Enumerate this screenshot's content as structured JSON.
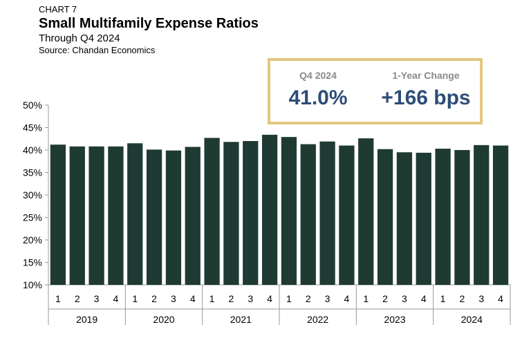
{
  "header": {
    "chart_number": "CHART 7",
    "title": "Small Multifamily Expense Ratios",
    "subtitle": "Through Q4 2024",
    "source": "Source: Chandan Economics"
  },
  "kpis": [
    {
      "label": "Q4 2024",
      "value": "41.0%"
    },
    {
      "label": "1-Year Change",
      "value": "+166 bps"
    }
  ],
  "colors": {
    "bar": "#1f3a33",
    "box_border": "#e2c77e",
    "kpi_value": "#2d4d78",
    "axis": "#999999"
  },
  "chart_data": {
    "type": "bar",
    "title": "Small Multifamily Expense Ratios",
    "subtitle": "Through Q4 2024",
    "ylabel": "",
    "xlabel": "",
    "ylim": [
      10,
      50
    ],
    "yticks": [
      10,
      15,
      20,
      25,
      30,
      35,
      40,
      45,
      50
    ],
    "ytick_suffix": "%",
    "grid": false,
    "years": [
      "2019",
      "2020",
      "2021",
      "2022",
      "2023",
      "2024"
    ],
    "quarters": [
      "1",
      "2",
      "3",
      "4"
    ],
    "values": [
      41.2,
      40.8,
      40.8,
      40.8,
      41.5,
      40.1,
      39.9,
      40.7,
      42.7,
      41.8,
      42.0,
      43.4,
      42.9,
      41.3,
      41.9,
      41.0,
      42.6,
      40.2,
      39.5,
      39.4,
      40.3,
      40.0,
      41.1,
      41.0
    ]
  }
}
